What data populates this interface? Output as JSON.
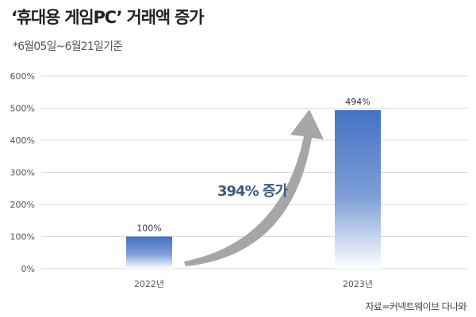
{
  "title": "‘휴대용 게임PC’ 거래액 증가",
  "subtitle": "*6월05일~6월21일기준",
  "source": "자료=커넥트웨이브 다나와",
  "annotation": "394% 증가",
  "colors": {
    "bar_top": "#4472c4",
    "bar_bottom": "#ffffff",
    "arrow": "#a6a6a6",
    "grid": "#d9d9d9",
    "annotation": "#3f5a82"
  },
  "chart_data": {
    "type": "bar",
    "categories": [
      "2022년",
      "2023년"
    ],
    "values": [
      100,
      494
    ],
    "value_labels": [
      "100%",
      "494%"
    ],
    "ylim": [
      0,
      600
    ],
    "yticks": [
      "0%",
      "100%",
      "200%",
      "300%",
      "400%",
      "500%",
      "600%"
    ],
    "grid": true
  }
}
